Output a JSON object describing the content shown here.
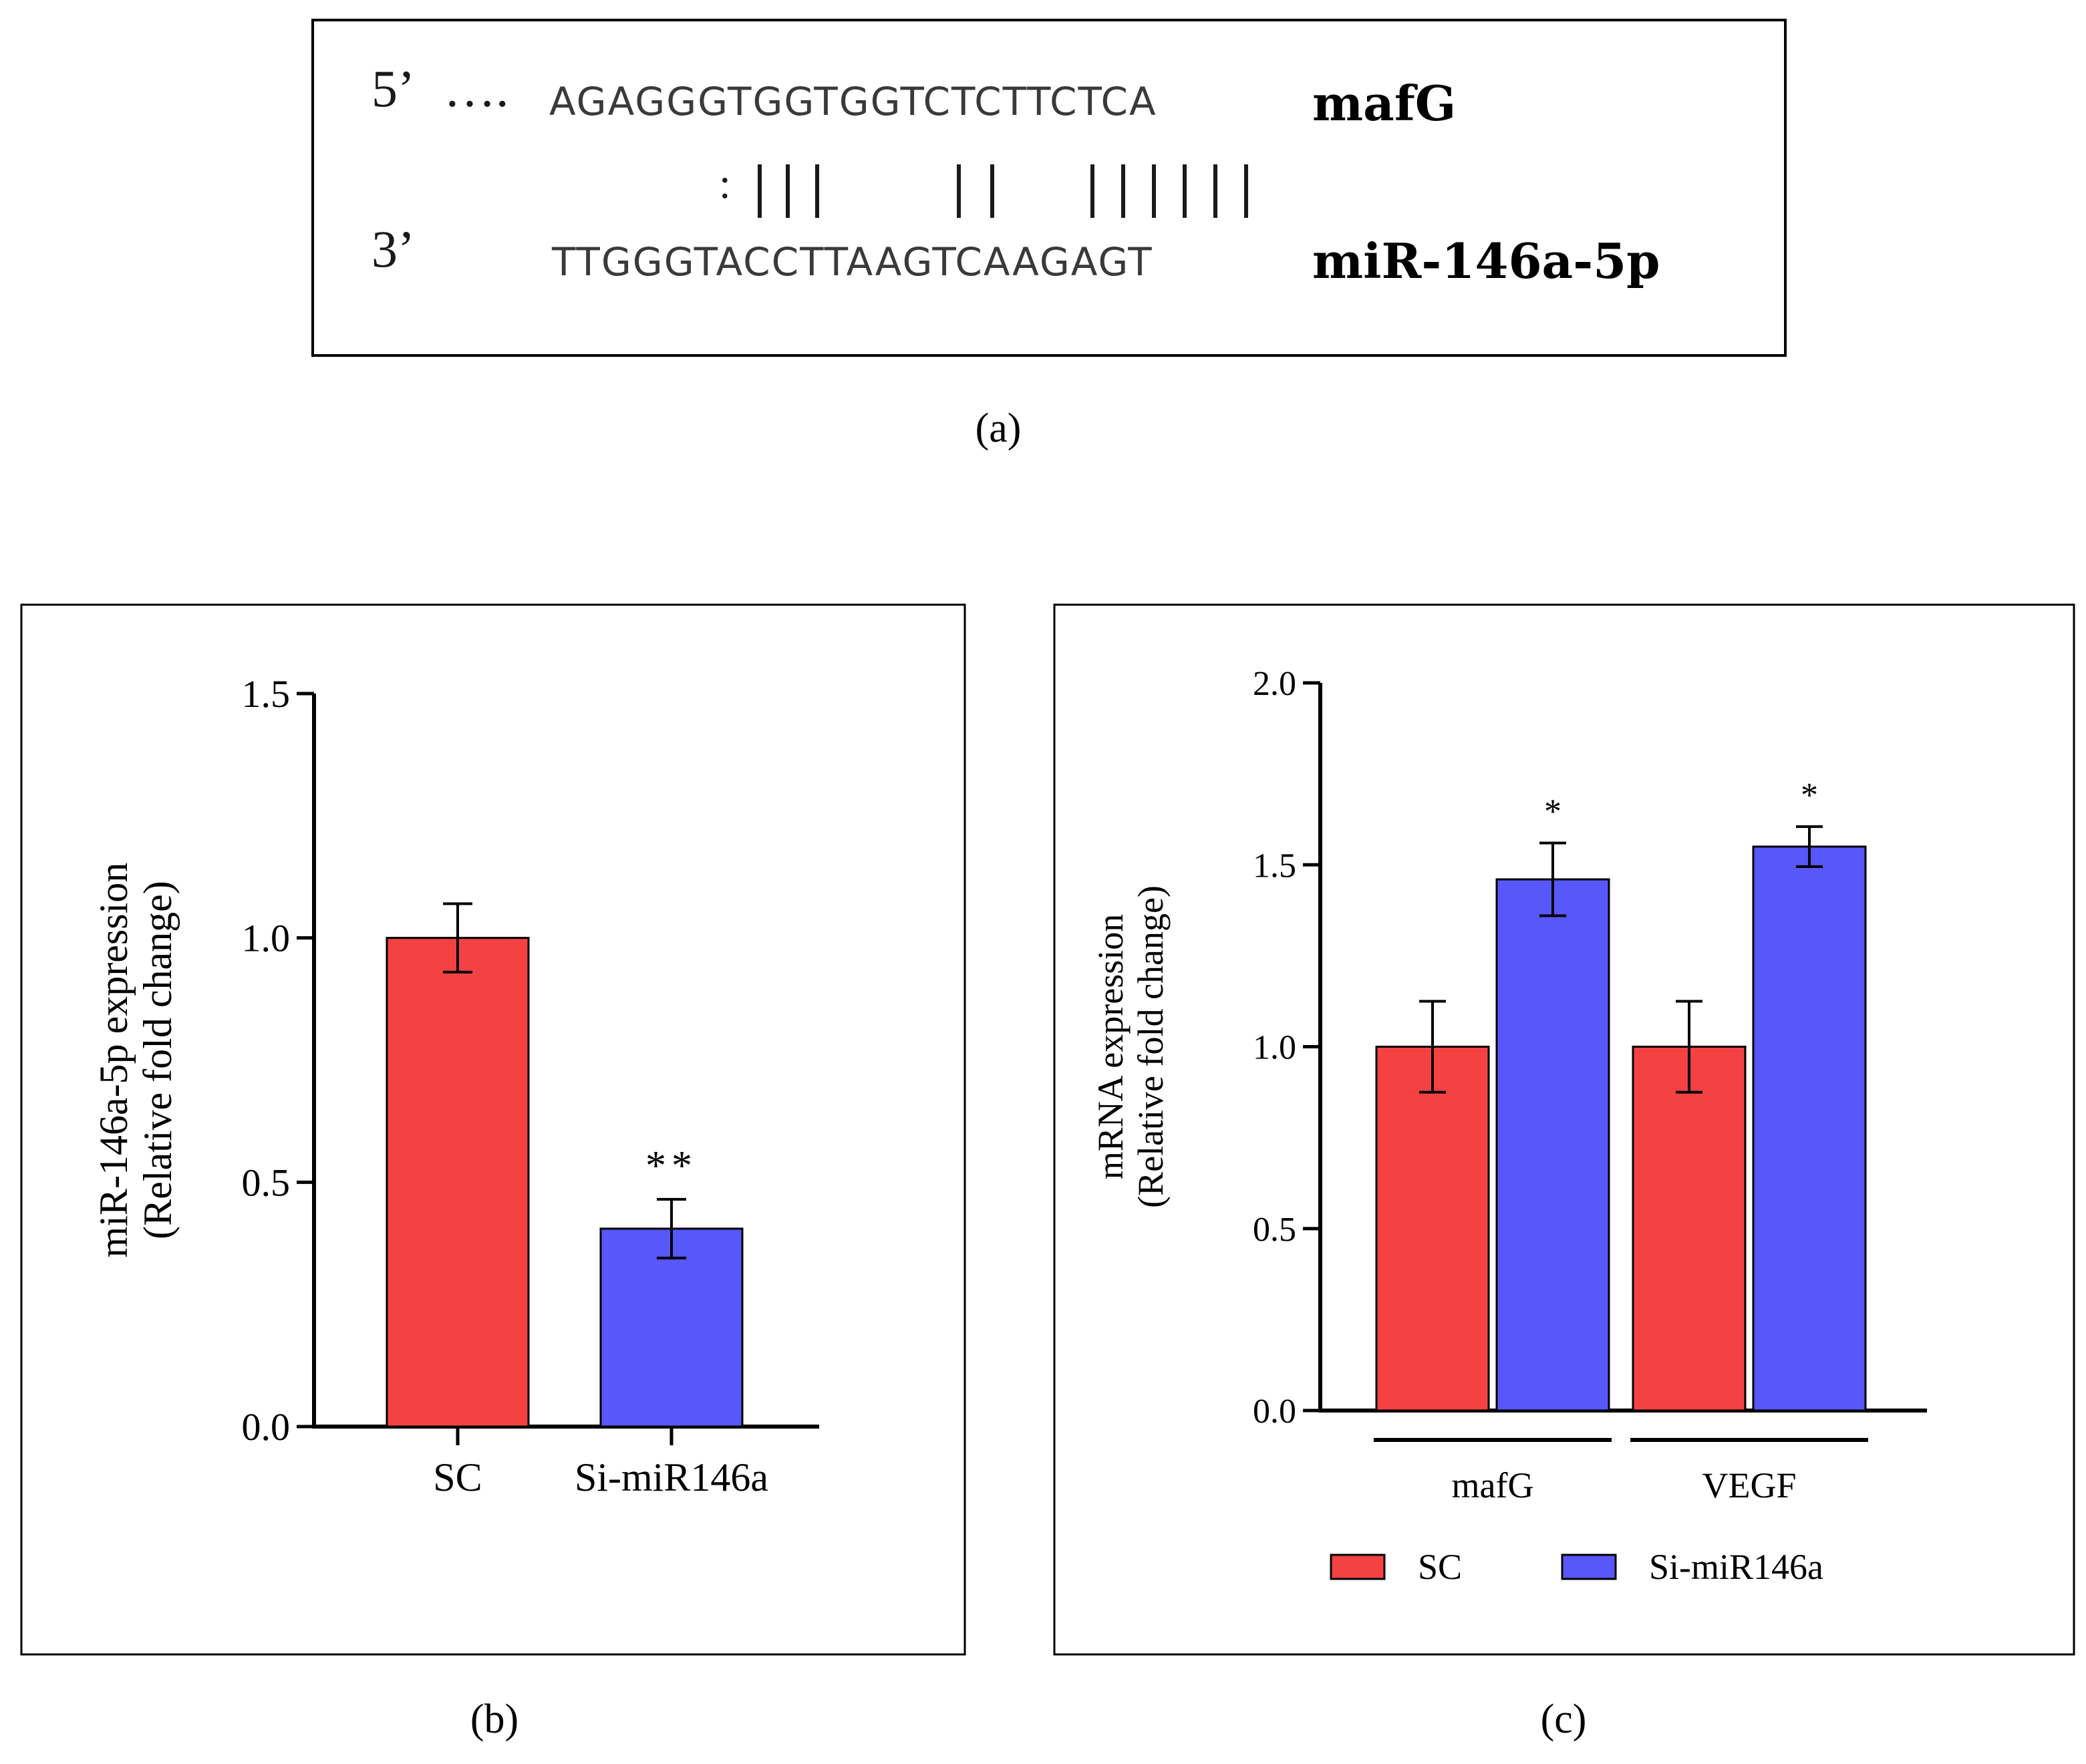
{
  "panel_a": {
    "five_prime_label": "5’",
    "ellipsis": "….",
    "target_sequence": "AGAGGGTGGTGGTCTCTTCTCA",
    "target_gene": "mafG",
    "pairing_colon": ":",
    "three_prime_label": "3’",
    "mirna_sequence": "TTGGGTACCTTAAGTCAAGAGT",
    "mirna_name": "miR-146a-5p"
  },
  "captions": {
    "a": "(a)",
    "b": "(b)",
    "c": "(c)"
  },
  "colors": {
    "sc": "#f44242",
    "si": "#5757fa",
    "axis": "#000000"
  },
  "chart_data": [
    {
      "id": "b",
      "type": "bar",
      "categories": [
        "SC",
        "Si-miR146a"
      ],
      "values": [
        1.0,
        0.405
      ],
      "errors": [
        0.07,
        0.06
      ],
      "significance": [
        "",
        "**"
      ],
      "ylabel_line1": "miR-146a-5p expression",
      "ylabel_line2": "(Relative fold change)",
      "ylim": [
        0,
        1.5
      ],
      "yticks": [
        "0.0",
        "0.5",
        "1.0",
        "1.5"
      ]
    },
    {
      "id": "c",
      "type": "bar",
      "categories": [
        "mafG",
        "VEGF"
      ],
      "series": [
        {
          "name": "SC",
          "values": [
            1.0,
            1.0
          ],
          "errors": [
            0.125,
            0.125
          ],
          "significance": [
            "",
            ""
          ]
        },
        {
          "name": "Si-miR146a",
          "values": [
            1.46,
            1.55
          ],
          "errors": [
            0.1,
            0.055
          ],
          "significance": [
            "*",
            "*"
          ]
        }
      ],
      "ylabel_line1": "mRNA expression",
      "ylabel_line2": "(Relative fold change)",
      "ylim": [
        0,
        2.0
      ],
      "yticks": [
        "0.0",
        "0.5",
        "1.0",
        "1.5",
        "2.0"
      ],
      "legend": "bottom"
    }
  ]
}
